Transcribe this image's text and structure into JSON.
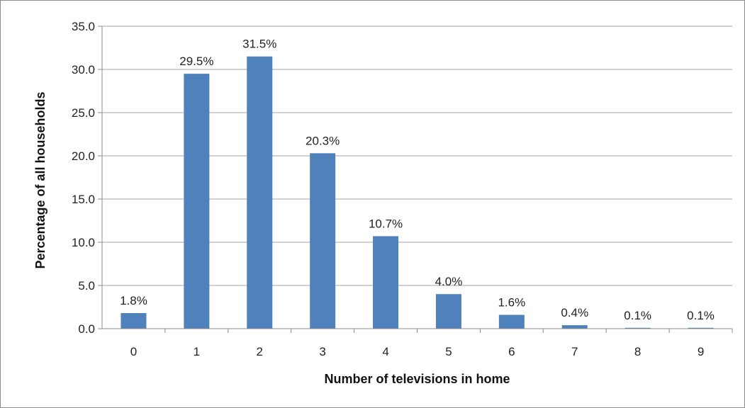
{
  "chart_data": {
    "type": "bar",
    "title": "",
    "xlabel": "Number of televisions in home",
    "ylabel": "Percentage of all households",
    "categories": [
      "0",
      "1",
      "2",
      "3",
      "4",
      "5",
      "6",
      "7",
      "8",
      "9"
    ],
    "values": [
      1.8,
      29.5,
      31.5,
      20.3,
      10.7,
      4.0,
      1.6,
      0.4,
      0.1,
      0.1
    ],
    "data_labels": [
      "1.8%",
      "29.5%",
      "31.5%",
      "20.3%",
      "10.7%",
      "4.0%",
      "1.6%",
      "0.4%",
      "0.1%",
      "0.1%"
    ],
    "yticks": [
      "0.0",
      "5.0",
      "10.0",
      "15.0",
      "20.0",
      "25.0",
      "30.0",
      "35.0"
    ],
    "ylim": [
      0,
      35
    ],
    "grid": true,
    "legend": "none",
    "bar_color": "#4f81bd",
    "gridline_color": "#a6a6a6"
  }
}
